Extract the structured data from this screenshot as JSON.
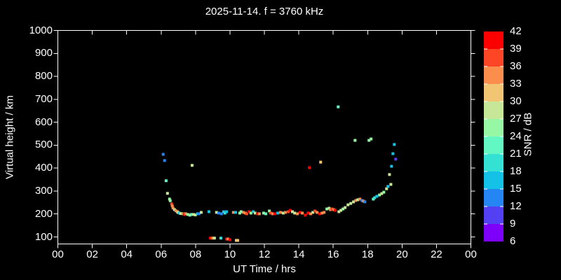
{
  "colors": {
    "background": "#000000",
    "foreground": "#ffffff"
  },
  "chart_data": {
    "type": "scatter",
    "title": "2025-11-14. f = 3760 kHz",
    "xlabel": "UT Time / hrs",
    "ylabel": "Virtual height / km",
    "colorbar_label": "SNR / dB",
    "xlim": [
      0,
      24
    ],
    "ylim": [
      66,
      1000
    ],
    "grid": false,
    "x_ticks": {
      "values": [
        0,
        2,
        4,
        6,
        8,
        10,
        12,
        14,
        16,
        18,
        20,
        22,
        24
      ],
      "labels": [
        "00",
        "02",
        "04",
        "06",
        "08",
        "10",
        "12",
        "14",
        "16",
        "18",
        "20",
        "22",
        "00"
      ]
    },
    "y_ticks": [
      100,
      200,
      300,
      400,
      500,
      600,
      700,
      800,
      900,
      1000
    ],
    "colorbar": {
      "min": 6,
      "max": 42,
      "step": 3,
      "tick_labels": [
        6,
        9,
        12,
        15,
        18,
        21,
        24,
        27,
        30,
        33,
        36,
        39,
        42
      ],
      "segment_colors": [
        "#7d00fb",
        "#5340f2",
        "#2585f2",
        "#14c2e8",
        "#33e2d2",
        "#63f7c3",
        "#96f7a4",
        "#c6e698",
        "#f2c572",
        "#fb8d4d",
        "#fc4626",
        "#fc0000"
      ]
    },
    "points_format": [
      "ut_hour",
      "virtual_height_km",
      "snr_db"
    ],
    "points": [
      [
        6.12,
        460,
        13.5
      ],
      [
        6.2,
        433,
        13.5
      ],
      [
        6.29,
        345,
        22.5
      ],
      [
        6.37,
        290,
        28.5
      ],
      [
        6.49,
        265,
        25.5
      ],
      [
        6.53,
        258,
        25.5
      ],
      [
        6.61,
        244,
        37.5
      ],
      [
        6.65,
        235,
        34.5
      ],
      [
        6.69,
        226,
        34.5
      ],
      [
        6.78,
        219,
        28.5
      ],
      [
        6.86,
        214,
        34.5
      ],
      [
        6.94,
        210,
        34.5
      ],
      [
        6.98,
        207,
        28.5
      ],
      [
        7.06,
        204,
        16.5
      ],
      [
        7.14,
        202,
        28.5
      ],
      [
        7.27,
        201,
        34.5
      ],
      [
        7.35,
        198,
        40.5
      ],
      [
        7.43,
        201,
        34.5
      ],
      [
        7.55,
        198,
        25.5
      ],
      [
        7.67,
        195,
        25.5
      ],
      [
        7.76,
        198,
        22.5
      ],
      [
        7.88,
        198,
        28.5
      ],
      [
        7.99,
        196,
        28.5
      ],
      [
        8.12,
        201,
        16.5
      ],
      [
        8.2,
        201,
        13.5
      ],
      [
        8.33,
        207,
        28.5
      ],
      [
        8.78,
        210,
        16.5
      ],
      [
        9.22,
        207,
        28.5
      ],
      [
        9.35,
        204,
        13.5
      ],
      [
        9.51,
        201,
        13.5
      ],
      [
        9.63,
        210,
        16.5
      ],
      [
        9.71,
        204,
        19.5
      ],
      [
        9.8,
        210,
        16.5
      ],
      [
        10.2,
        207,
        34.5
      ],
      [
        10.33,
        207,
        16.5
      ],
      [
        10.57,
        204,
        25.5
      ],
      [
        10.65,
        210,
        25.5
      ],
      [
        10.78,
        207,
        34.5
      ],
      [
        10.9,
        204,
        34.5
      ],
      [
        10.98,
        201,
        37.5
      ],
      [
        11.1,
        210,
        40.5
      ],
      [
        11.22,
        204,
        25.5
      ],
      [
        11.35,
        210,
        16.5
      ],
      [
        11.47,
        204,
        28.5
      ],
      [
        11.59,
        201,
        40.5
      ],
      [
        11.71,
        201,
        34.5
      ],
      [
        11.96,
        204,
        25.5
      ],
      [
        12.08,
        201,
        22.5
      ],
      [
        8.86,
        95,
        40.5
      ],
      [
        8.94,
        95,
        37.5
      ],
      [
        9.02,
        95,
        34.5
      ],
      [
        9.1,
        95,
        28.5
      ],
      [
        9.47,
        95,
        19.5
      ],
      [
        9.8,
        91,
        40.5
      ],
      [
        9.88,
        91,
        34.5
      ],
      [
        10.0,
        88,
        40.5
      ],
      [
        10.37,
        85,
        31.5
      ],
      [
        10.45,
        85,
        31.5
      ],
      [
        12.29,
        213,
        25.5
      ],
      [
        12.37,
        204,
        37.5
      ],
      [
        12.49,
        201,
        34.5
      ],
      [
        12.61,
        201,
        40.5
      ],
      [
        12.78,
        204,
        16.5
      ],
      [
        12.94,
        207,
        34.5
      ],
      [
        13.1,
        204,
        28.5
      ],
      [
        13.22,
        207,
        34.5
      ],
      [
        13.39,
        210,
        37.5
      ],
      [
        13.51,
        216,
        40.5
      ],
      [
        13.63,
        210,
        28.5
      ],
      [
        13.76,
        204,
        28.5
      ],
      [
        13.92,
        201,
        34.5
      ],
      [
        14.08,
        207,
        40.5
      ],
      [
        14.2,
        204,
        34.5
      ],
      [
        14.37,
        195,
        40.5
      ],
      [
        14.53,
        204,
        40.5
      ],
      [
        14.69,
        201,
        34.5
      ],
      [
        14.82,
        207,
        28.5
      ],
      [
        14.94,
        213,
        37.5
      ],
      [
        15.06,
        207,
        34.5
      ],
      [
        15.22,
        201,
        40.5
      ],
      [
        15.35,
        204,
        34.5
      ],
      [
        15.47,
        207,
        34.5
      ],
      [
        15.63,
        222,
        25.5
      ],
      [
        15.76,
        225,
        28.5
      ],
      [
        15.84,
        219,
        34.5
      ],
      [
        15.92,
        222,
        37.5
      ],
      [
        16.04,
        219,
        34.5
      ],
      [
        16.12,
        216,
        40.5
      ],
      [
        7.8,
        412,
        28.5
      ],
      [
        14.61,
        402,
        40.5
      ],
      [
        15.27,
        426,
        31.5
      ],
      [
        16.29,
        667,
        22.5
      ],
      [
        16.33,
        210,
        28.5
      ],
      [
        16.45,
        216,
        28.5
      ],
      [
        16.57,
        222,
        25.5
      ],
      [
        16.69,
        228,
        28.5
      ],
      [
        16.86,
        240,
        28.5
      ],
      [
        17.02,
        246,
        28.5
      ],
      [
        17.18,
        253,
        28.5
      ],
      [
        17.31,
        259,
        34.5
      ],
      [
        17.43,
        262,
        28.5
      ],
      [
        17.55,
        265,
        34.5
      ],
      [
        17.67,
        259,
        13.5
      ],
      [
        17.76,
        256,
        34.5
      ],
      [
        17.84,
        253,
        13.5
      ],
      [
        18.33,
        265,
        22.5
      ],
      [
        18.41,
        271,
        19.5
      ],
      [
        18.53,
        277,
        16.5
      ],
      [
        18.69,
        283,
        25.5
      ],
      [
        18.82,
        289,
        28.5
      ],
      [
        18.94,
        295,
        25.5
      ],
      [
        19.1,
        310,
        28.5
      ],
      [
        19.18,
        320,
        16.5
      ],
      [
        19.35,
        329,
        28.5
      ],
      [
        17.27,
        521,
        25.5
      ],
      [
        18.08,
        521,
        25.5
      ],
      [
        18.2,
        527,
        25.5
      ],
      [
        19.27,
        372,
        28.5
      ],
      [
        19.39,
        408,
        16.5
      ],
      [
        19.47,
        463,
        16.5
      ],
      [
        19.55,
        503,
        16.5
      ],
      [
        19.63,
        439,
        10.5
      ]
    ]
  }
}
